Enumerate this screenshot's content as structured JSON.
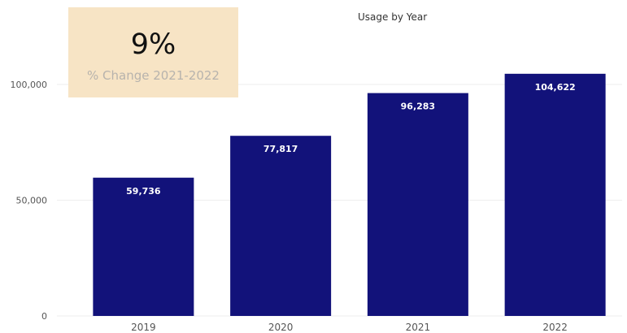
{
  "kpi": {
    "value": "9%",
    "label": "% Change 2021-2022"
  },
  "colors": {
    "bar": "#12127a",
    "kpi_background": "#f7e4c5",
    "grid": "#eeeeee",
    "axis_text": "#555555",
    "data_label": "#ffffff"
  },
  "chart_data": {
    "type": "bar",
    "title": "Usage by Year",
    "xlabel": "",
    "ylabel": "",
    "categories": [
      "2019",
      "2020",
      "2021",
      "2022"
    ],
    "values": [
      59736,
      77817,
      96283,
      104622
    ],
    "data_labels": [
      "59,736",
      "77,817",
      "96,283",
      "104,622"
    ],
    "y_ticks": [
      0,
      50000,
      100000
    ],
    "y_tick_labels": [
      "0",
      "50,000",
      "100,000"
    ],
    "ylim": [
      0,
      107000
    ],
    "grid": true,
    "legend": "none"
  }
}
